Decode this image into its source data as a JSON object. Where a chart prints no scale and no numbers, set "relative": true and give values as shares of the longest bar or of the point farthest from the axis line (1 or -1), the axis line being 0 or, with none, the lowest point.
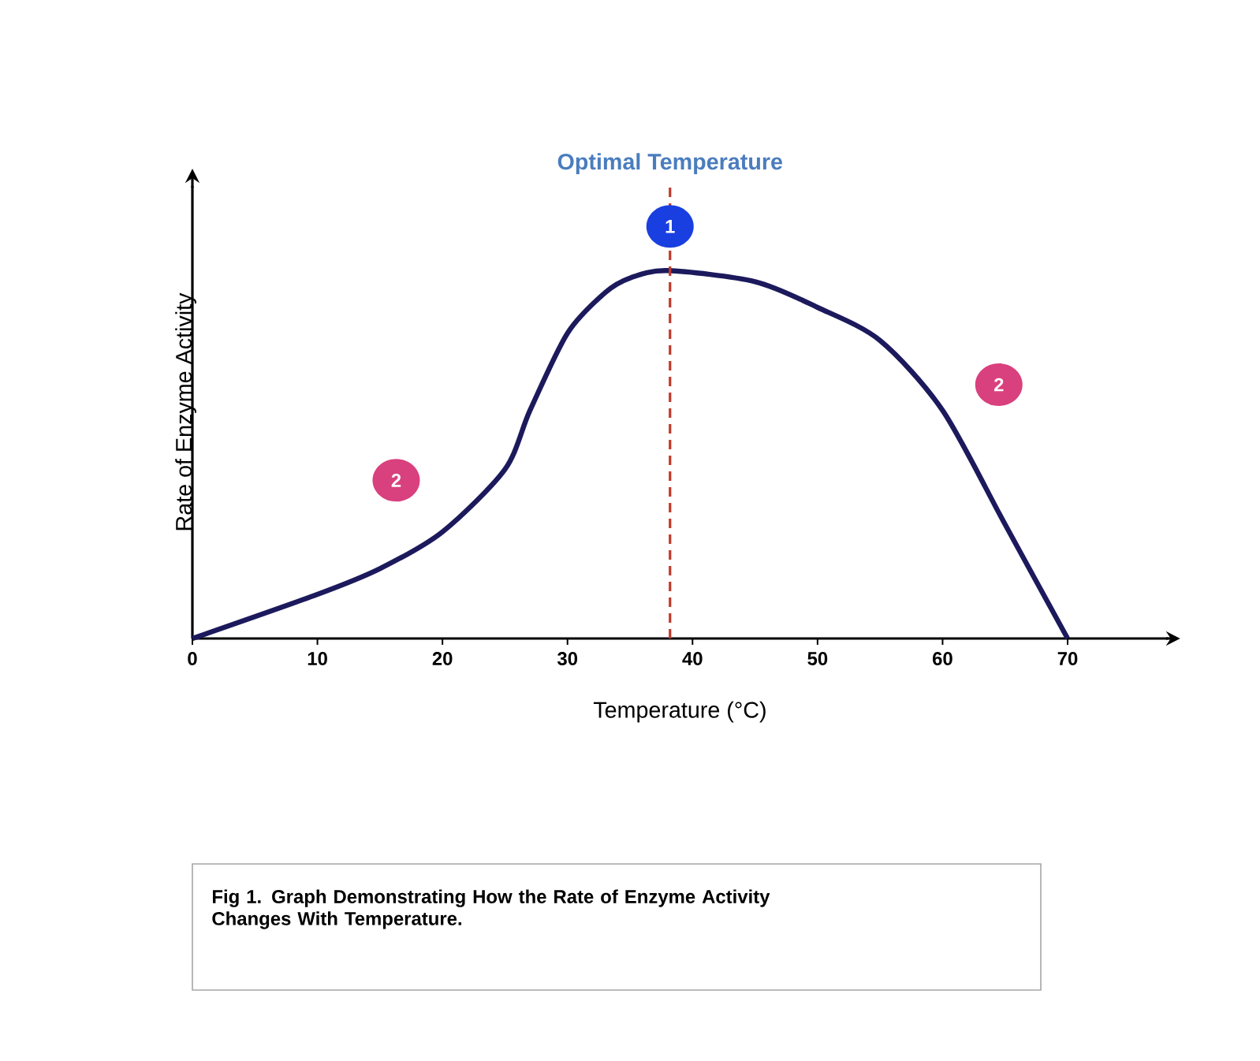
{
  "chart_data": {
    "type": "line",
    "relative": true,
    "xlabel": "Temperature (°C)",
    "ylabel": "Rate of Enzyme Activity",
    "x": [
      0,
      10,
      15,
      20,
      25,
      27,
      30,
      33,
      35,
      38,
      45,
      50,
      55,
      60,
      65,
      70
    ],
    "series": [
      {
        "color": "#1c1a5c",
        "values": [
          0,
          0.12,
          0.19,
          0.29,
          0.46,
          0.62,
          0.83,
          0.94,
          0.98,
          1,
          0.97,
          0.9,
          0.81,
          0.62,
          0.31,
          0
        ]
      }
    ],
    "xlim": [
      0,
      78
    ],
    "xticks": [
      0,
      10,
      20,
      30,
      40,
      50,
      60,
      70
    ],
    "ref_lines": [
      {
        "axis": "x",
        "value": 38.2,
        "label": "Optimal Temperature",
        "color": "#c0392b",
        "line_style": "dashed"
      }
    ],
    "annotations": [
      {
        "text": "1",
        "x": 38.2,
        "y": 1.12
      },
      {
        "text": "2",
        "x": 16.3,
        "y": 0.43
      },
      {
        "text": "2",
        "x": 64.5,
        "y": 0.69
      },
      "Fig 1. Graph Demonstrating How the Rate of Enzyme Activity Changes With Temperature."
    ],
    "marker": "none",
    "line_style": "solid"
  }
}
